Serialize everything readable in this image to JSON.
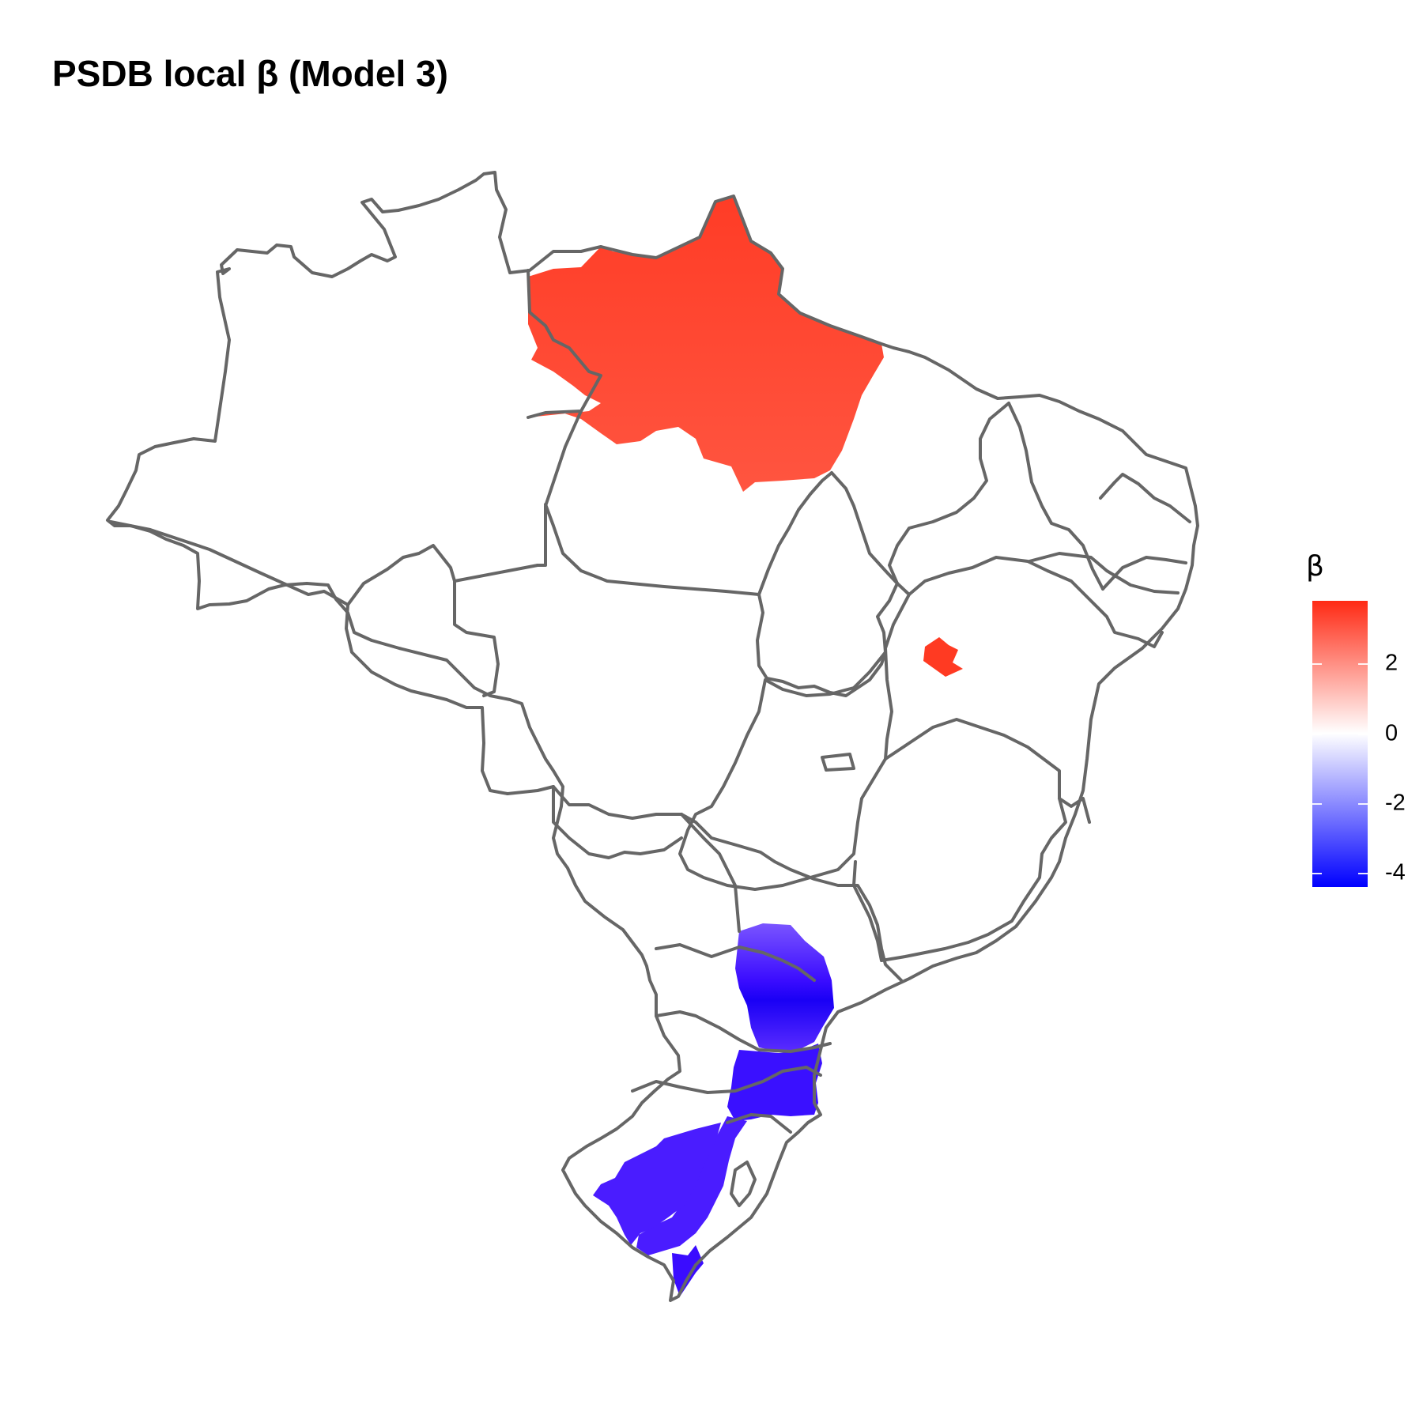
{
  "title": "PSDB local β (Model 3)",
  "legend": {
    "title": "β",
    "range": [
      -4.4,
      3.8
    ],
    "colors": {
      "high": "#ff2a14",
      "mid": "#ffffff",
      "low": "#0000ff"
    },
    "ticks": [
      {
        "value": 2,
        "label": "2"
      },
      {
        "value": 0,
        "label": "0"
      },
      {
        "value": -2,
        "label": "-2"
      },
      {
        "value": -4,
        "label": "-4"
      }
    ]
  },
  "style": {
    "border_color": "#666666",
    "background": "#ffffff"
  },
  "map": {
    "projection": "lon/lat",
    "highlighted_regions": [
      {
        "name": "north-cluster",
        "beta": 3.2
      },
      {
        "name": "northeast-cluster",
        "beta": 3.5
      },
      {
        "name": "south-cluster-parana",
        "beta": -3.0
      },
      {
        "name": "south-cluster-santa-catarina",
        "beta": -3.6
      },
      {
        "name": "south-cluster-rio-grande",
        "beta": -3.4
      }
    ]
  }
}
